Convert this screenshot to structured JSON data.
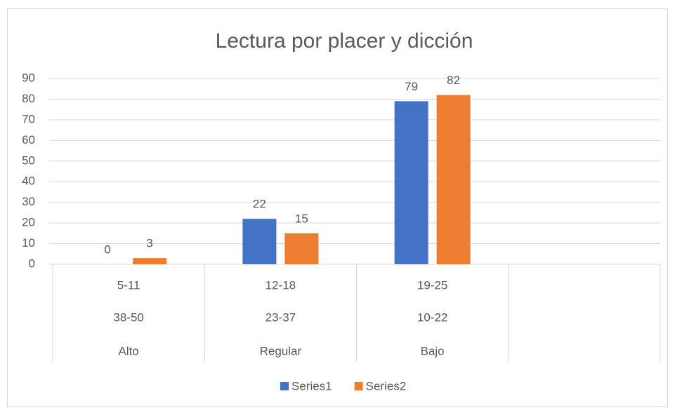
{
  "chart_data": {
    "type": "bar",
    "title": "Lectura por placer y dicción",
    "categories": [
      [
        "5-11",
        "38-50",
        "Alto"
      ],
      [
        "12-18",
        "23-37",
        "Regular"
      ],
      [
        "19-25",
        "10-22",
        "Bajo"
      ],
      null
    ],
    "series": [
      {
        "name": "Series1",
        "color": "#4472c4",
        "values": [
          0,
          22,
          79,
          null
        ]
      },
      {
        "name": "Series2",
        "color": "#ed7d31",
        "values": [
          3,
          15,
          82,
          null
        ]
      }
    ],
    "ylim": [
      0,
      90
    ],
    "yticks": [
      0,
      10,
      20,
      30,
      40,
      50,
      60,
      70,
      80,
      90
    ],
    "grid": true,
    "legend": "bottom"
  }
}
